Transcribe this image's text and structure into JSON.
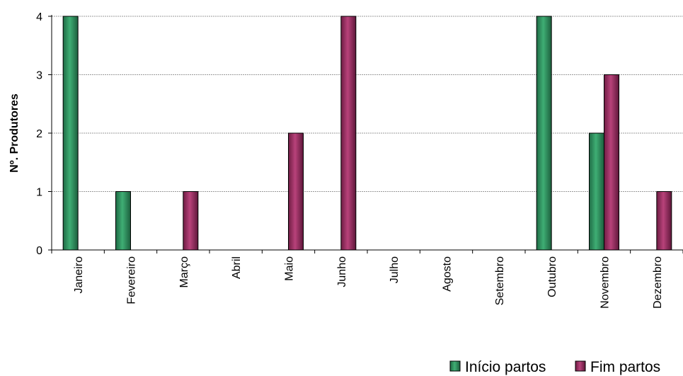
{
  "chart_data": {
    "type": "bar",
    "categories": [
      "Janeiro",
      "Fevereiro",
      "Março",
      "Abril",
      "Maio",
      "Junho",
      "Julho",
      "Agosto",
      "Setembro",
      "Outubro",
      "Novembro",
      "Dezembro"
    ],
    "series": [
      {
        "name": "Início partos",
        "values": [
          4,
          1,
          0,
          0,
          0,
          0,
          0,
          0,
          0,
          4,
          2,
          0
        ],
        "color": "#2e8b57"
      },
      {
        "name": "Fim partos",
        "values": [
          0,
          0,
          1,
          0,
          2,
          4,
          0,
          0,
          0,
          0,
          3,
          1
        ],
        "color": "#9b2d62"
      }
    ],
    "ylabel": "Nº. Produtores",
    "xlabel": "",
    "ylim": [
      0,
      4
    ],
    "yticks": [
      0,
      1,
      2,
      3,
      4
    ],
    "grid": true,
    "legend_position": "bottom-right"
  }
}
